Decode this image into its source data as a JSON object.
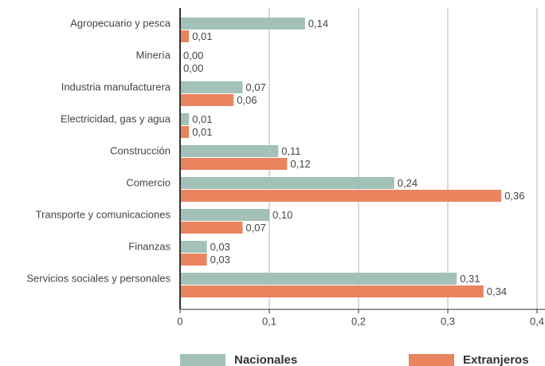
{
  "chart_data": {
    "type": "hbar",
    "categories": [
      "Agropecuario y pesca",
      "Minería",
      "Industria manufacturera",
      "Electricidad, gas y agua",
      "Construcción",
      "Comercio",
      "Transporte y comunicaciones",
      "Finanzas",
      "Servicios sociales y personales"
    ],
    "series": [
      {
        "name": "Nacionales",
        "color": "#a3c1b9",
        "values": [
          0.14,
          0.0,
          0.07,
          0.01,
          0.11,
          0.24,
          0.1,
          0.03,
          0.31
        ],
        "value_labels": [
          "0,14",
          "0,00",
          "0,07",
          "0,01",
          "0,11",
          "0,24",
          "0,10",
          "0,03",
          "0,31"
        ]
      },
      {
        "name": "Extranjeros",
        "color": "#e9845f",
        "values": [
          0.01,
          0.0,
          0.06,
          0.01,
          0.12,
          0.36,
          0.07,
          0.03,
          0.34
        ],
        "value_labels": [
          "0,01",
          "0,00",
          "0,06",
          "0,01",
          "0,12",
          "0,36",
          "0,07",
          "0,03",
          "0,34"
        ]
      }
    ],
    "xlim": [
      0,
      0.4
    ],
    "xticks": [
      0,
      {
        "value": 0.1,
        "label": "0,1"
      },
      {
        "value": 0.2,
        "label": "0,2"
      },
      {
        "value": 0.3,
        "label": "0,3"
      },
      {
        "value": 0.4,
        "label": "0,4"
      }
    ],
    "grid": true
  }
}
